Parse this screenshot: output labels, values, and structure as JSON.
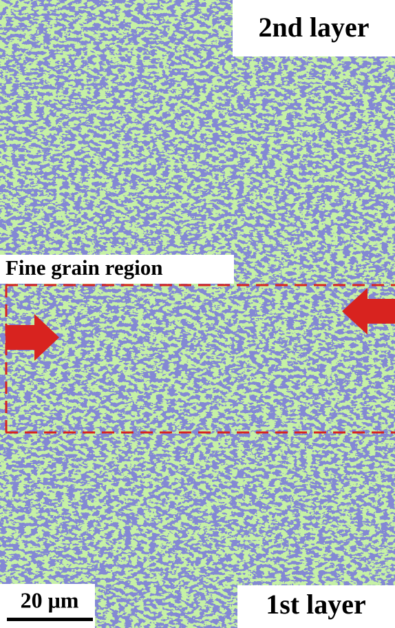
{
  "top_label": "2nd layer",
  "region_label": "Fine grain region",
  "bottom_label": "1st layer",
  "scale_bar": {
    "label": "20 μm"
  }
}
